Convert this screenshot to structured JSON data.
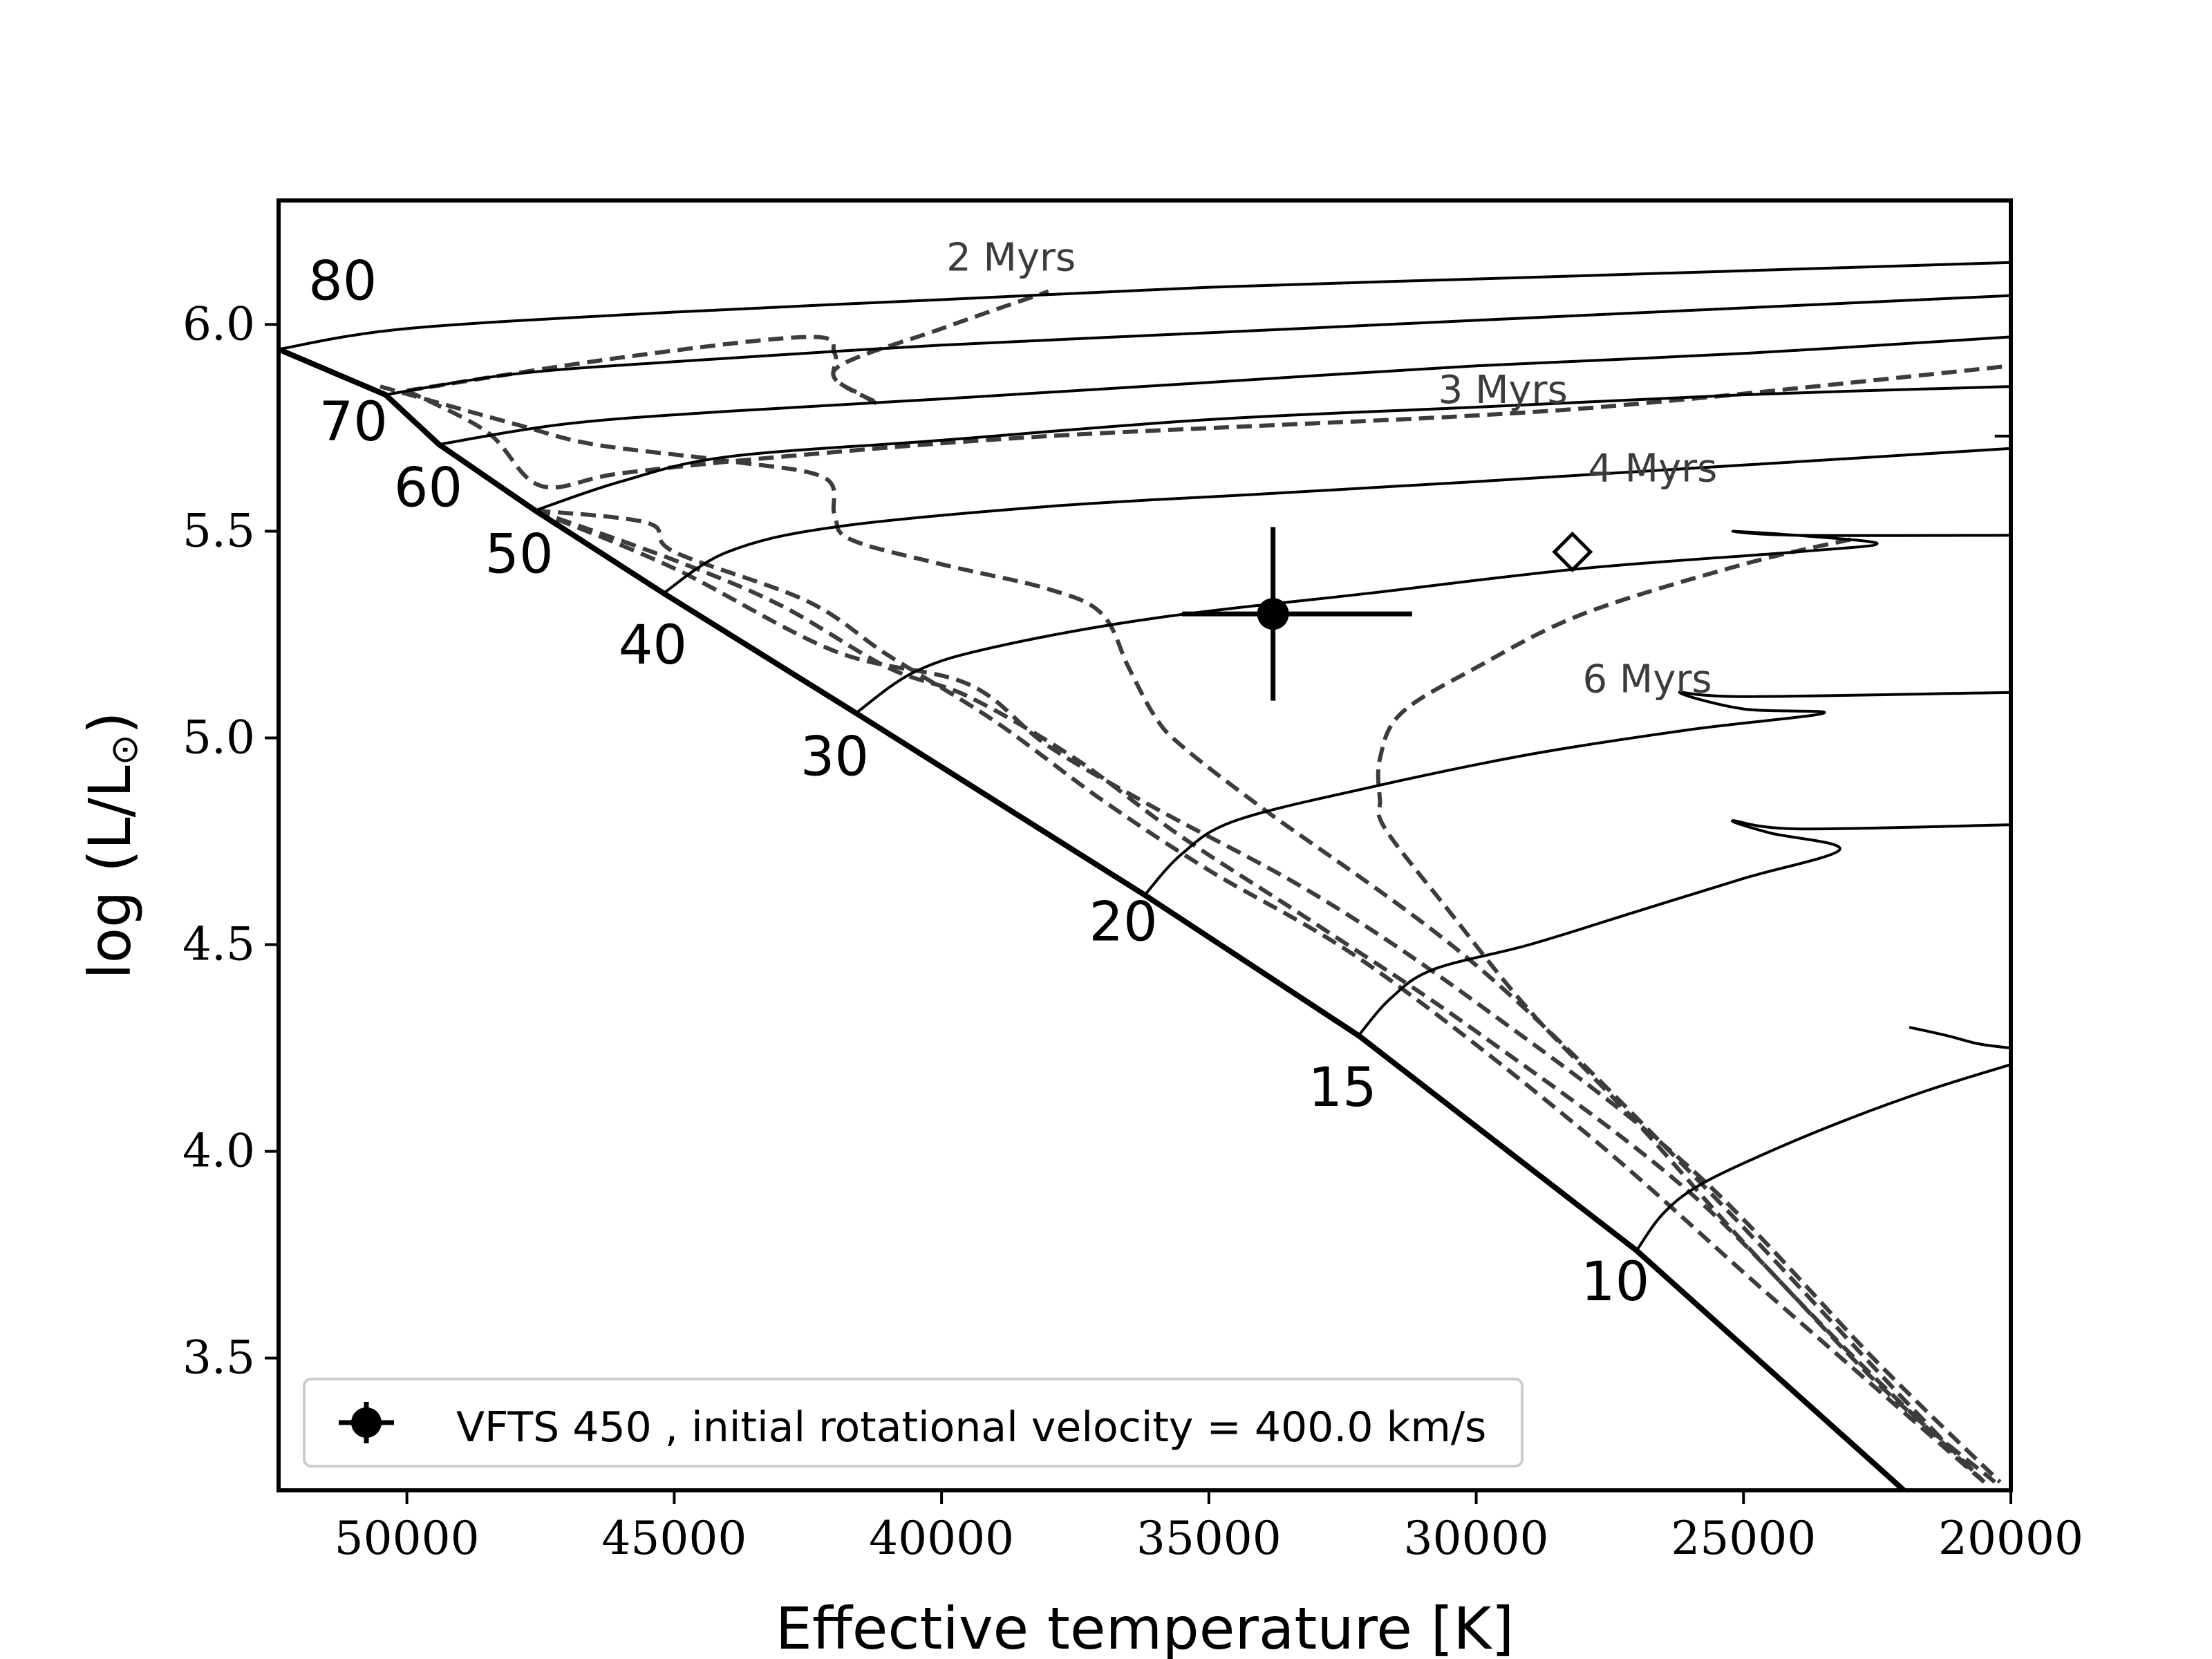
{
  "chart_data": {
    "type": "line",
    "title": "",
    "xlabel": "Effective temperature [K]",
    "ylabel_text": "log (L/L",
    "ylabel_close": ")",
    "ylabel_symbol": "⊙",
    "xlim": [
      52400,
      20000
    ],
    "ylim": [
      3.18,
      6.3
    ],
    "x_ticks": [
      50000,
      45000,
      40000,
      35000,
      30000,
      25000,
      20000
    ],
    "x_tick_labels": [
      "50000",
      "45000",
      "40000",
      "35000",
      "30000",
      "25000",
      "20000"
    ],
    "y_ticks": [
      3.5,
      4.0,
      4.5,
      5.0,
      5.5,
      6.0
    ],
    "y_tick_labels": [
      "3.5",
      "4.0",
      "4.5",
      "5.0",
      "5.5",
      "6.0"
    ],
    "zams": [
      [
        52400,
        5.94
      ],
      [
        50400,
        5.83
      ],
      [
        49400,
        5.71
      ],
      [
        47600,
        5.55
      ],
      [
        45200,
        5.35
      ],
      [
        41600,
        5.06
      ],
      [
        36200,
        4.62
      ],
      [
        32200,
        4.28
      ],
      [
        27000,
        3.76
      ],
      [
        22000,
        3.18
      ]
    ],
    "tracks": [
      {
        "mass_label": "80",
        "label_at": [
          51200,
          6.06
        ],
        "points": [
          [
            52400,
            5.94
          ],
          [
            50000,
            5.99
          ],
          [
            45000,
            6.03
          ],
          [
            40000,
            6.06
          ],
          [
            35000,
            6.09
          ],
          [
            30000,
            6.11
          ],
          [
            25000,
            6.13
          ],
          [
            20000,
            6.15
          ]
        ]
      },
      {
        "mass_label": "70",
        "label_at": [
          51000,
          5.72
        ],
        "points": [
          [
            50400,
            5.83
          ],
          [
            48000,
            5.88
          ],
          [
            45000,
            5.91
          ],
          [
            40000,
            5.95
          ],
          [
            35000,
            5.98
          ],
          [
            30000,
            6.01
          ],
          [
            25000,
            6.04
          ],
          [
            20000,
            6.07
          ]
        ]
      },
      {
        "mass_label": "60",
        "label_at": [
          49600,
          5.56
        ],
        "points": [
          [
            49400,
            5.71
          ],
          [
            47000,
            5.76
          ],
          [
            44000,
            5.79
          ],
          [
            40000,
            5.82
          ],
          [
            35000,
            5.86
          ],
          [
            30000,
            5.9
          ],
          [
            25000,
            5.93
          ],
          [
            20000,
            5.97
          ]
        ]
      },
      {
        "mass_label": "50",
        "label_at": [
          47900,
          5.4
        ],
        "points": [
          [
            47600,
            5.55
          ],
          [
            46000,
            5.62
          ],
          [
            44000,
            5.68
          ],
          [
            40000,
            5.72
          ],
          [
            35000,
            5.77
          ],
          [
            30000,
            5.8
          ],
          [
            25000,
            5.83
          ],
          [
            20000,
            5.85
          ]
        ]
      },
      {
        "mass_label": "40",
        "label_at": [
          45400,
          5.18
        ],
        "points": [
          [
            45200,
            5.35
          ],
          [
            44000,
            5.45
          ],
          [
            42000,
            5.51
          ],
          [
            38000,
            5.56
          ],
          [
            34000,
            5.59
          ],
          [
            30000,
            5.62
          ],
          [
            25000,
            5.66
          ],
          [
            20000,
            5.7
          ]
        ]
      },
      {
        "mass_label": "30",
        "label_at": [
          42000,
          4.91
        ],
        "points": [
          [
            41600,
            5.06
          ],
          [
            40500,
            5.16
          ],
          [
            39000,
            5.22
          ],
          [
            36000,
            5.29
          ],
          [
            32000,
            5.35
          ],
          [
            28000,
            5.41
          ],
          [
            24000,
            5.45
          ],
          [
            22500,
            5.47
          ],
          [
            24000,
            5.49
          ],
          [
            25200,
            5.5
          ],
          [
            24000,
            5.49
          ],
          [
            20000,
            5.49
          ]
        ]
      },
      {
        "mass_label": "20",
        "label_at": [
          36600,
          4.51
        ],
        "points": [
          [
            36200,
            4.62
          ],
          [
            35500,
            4.72
          ],
          [
            34500,
            4.8
          ],
          [
            32000,
            4.88
          ],
          [
            29000,
            4.96
          ],
          [
            26000,
            5.02
          ],
          [
            23500,
            5.06
          ],
          [
            25000,
            5.07
          ],
          [
            26200,
            5.11
          ],
          [
            25000,
            5.1
          ],
          [
            20000,
            5.11
          ]
        ]
      },
      {
        "mass_label": "15",
        "label_at": [
          32500,
          4.11
        ],
        "points": [
          [
            32200,
            4.28
          ],
          [
            31600,
            4.37
          ],
          [
            30800,
            4.44
          ],
          [
            29000,
            4.5
          ],
          [
            27000,
            4.58
          ],
          [
            25000,
            4.66
          ],
          [
            23200,
            4.73
          ],
          [
            24500,
            4.77
          ],
          [
            25200,
            4.8
          ],
          [
            24000,
            4.78
          ],
          [
            20000,
            4.79
          ]
        ]
      },
      {
        "mass_label": "10",
        "label_at": [
          27400,
          3.64
        ],
        "points": [
          [
            27000,
            3.76
          ],
          [
            26500,
            3.85
          ],
          [
            25800,
            3.92
          ],
          [
            24500,
            4.0
          ],
          [
            23000,
            4.08
          ],
          [
            21500,
            4.15
          ],
          [
            20000,
            4.21
          ]
        ]
      }
    ],
    "stubs": [
      {
        "points": [
          [
            20000,
            4.25
          ],
          [
            20600,
            4.26
          ],
          [
            21200,
            4.28
          ],
          [
            21900,
            4.3
          ]
        ]
      },
      {
        "points": [
          [
            20000,
            5.73
          ],
          [
            20300,
            5.73
          ]
        ]
      }
    ],
    "isochrones": [
      {
        "label": "2 Myrs",
        "label_at": [
          38700,
          6.13
        ],
        "points": [
          [
            50000,
            5.84
          ],
          [
            46000,
            5.92
          ],
          [
            42500,
            5.97
          ],
          [
            42000,
            5.93
          ],
          [
            42000,
            5.87
          ],
          [
            41500,
            5.83
          ],
          [
            41200,
            5.81
          ],
          [
            42000,
            5.89
          ],
          [
            40000,
            5.99
          ],
          [
            38000,
            6.08
          ]
        ]
      },
      {
        "label": "3 Myrs",
        "label_at": [
          29500,
          5.81
        ],
        "points": [
          [
            50000,
            5.84
          ],
          [
            48500,
            5.74
          ],
          [
            47500,
            5.61
          ],
          [
            46000,
            5.64
          ],
          [
            43000,
            5.68
          ],
          [
            38000,
            5.73
          ],
          [
            30000,
            5.78
          ],
          [
            26000,
            5.82
          ],
          [
            20000,
            5.9
          ]
        ]
      },
      {
        "label": "4 Myrs",
        "label_at": [
          26700,
          5.62
        ],
        "points": [
          [
            50500,
            5.85
          ],
          [
            48000,
            5.76
          ],
          [
            46500,
            5.71
          ],
          [
            44000,
            5.67
          ],
          [
            42200,
            5.63
          ],
          [
            42000,
            5.54
          ],
          [
            41700,
            5.48
          ],
          [
            40000,
            5.42
          ],
          [
            38000,
            5.36
          ],
          [
            37000,
            5.3
          ],
          [
            36500,
            5.17
          ],
          [
            36000,
            5.05
          ],
          [
            35500,
            4.98
          ],
          [
            34000,
            4.83
          ],
          [
            30000,
            4.45
          ],
          [
            26000,
            3.95
          ],
          [
            22000,
            3.4
          ],
          [
            20500,
            3.2
          ]
        ]
      },
      {
        "label": "6 Myrs",
        "label_at": [
          26800,
          5.11
        ],
        "points": [
          [
            23000,
            5.48
          ],
          [
            25000,
            5.42
          ],
          [
            28000,
            5.3
          ],
          [
            30000,
            5.17
          ],
          [
            31400,
            5.06
          ],
          [
            31800,
            4.95
          ],
          [
            31800,
            4.85
          ],
          [
            31700,
            4.78
          ],
          [
            30500,
            4.58
          ],
          [
            29000,
            4.34
          ],
          [
            27000,
            4.07
          ],
          [
            25000,
            3.78
          ],
          [
            23000,
            3.51
          ],
          [
            20500,
            3.2
          ]
        ]
      },
      {
        "label": "",
        "label_at": null,
        "points": [
          [
            47600,
            5.55
          ],
          [
            45500,
            5.52
          ],
          [
            45000,
            5.45
          ],
          [
            42500,
            5.33
          ],
          [
            41000,
            5.2
          ],
          [
            39000,
            5.04
          ],
          [
            37000,
            4.85
          ],
          [
            35000,
            4.68
          ],
          [
            32000,
            4.45
          ],
          [
            28000,
            4.05
          ],
          [
            24500,
            3.65
          ],
          [
            20500,
            3.2
          ]
        ]
      },
      {
        "label": "",
        "label_at": null,
        "points": [
          [
            47600,
            5.55
          ],
          [
            45000,
            5.43
          ],
          [
            43000,
            5.32
          ],
          [
            41000,
            5.17
          ],
          [
            39500,
            5.1
          ],
          [
            37500,
            4.95
          ],
          [
            35500,
            4.76
          ],
          [
            33000,
            4.55
          ],
          [
            30000,
            4.29
          ],
          [
            26000,
            3.9
          ],
          [
            22500,
            3.44
          ],
          [
            20300,
            3.2
          ]
        ]
      },
      {
        "label": "",
        "label_at": null,
        "points": [
          [
            47600,
            5.55
          ],
          [
            45000,
            5.41
          ],
          [
            42000,
            5.21
          ],
          [
            39500,
            5.13
          ],
          [
            38000,
            4.98
          ],
          [
            36000,
            4.83
          ],
          [
            33000,
            4.62
          ],
          [
            30000,
            4.36
          ],
          [
            26000,
            3.96
          ],
          [
            22500,
            3.49
          ],
          [
            20200,
            3.2
          ]
        ]
      }
    ],
    "point": {
      "label": "VFTS 450 , initial rotational velocity = 400.0 km/s",
      "teff": 33800,
      "teff_err_minus": 1700,
      "teff_err_plus": 2600,
      "logL": 5.3,
      "logL_err": 0.21
    },
    "diamond": {
      "teff": 28200,
      "logL": 5.45
    },
    "legend_position": "lower-left"
  }
}
